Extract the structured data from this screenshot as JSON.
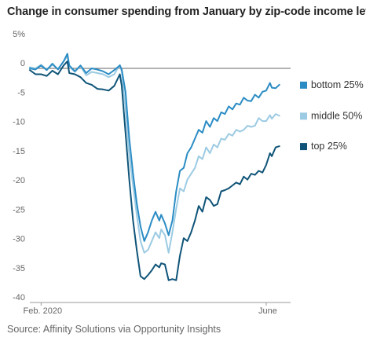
{
  "chart_data": {
    "type": "line",
    "title": "Change in consumer spending from January by zip-code income level",
    "source": "Source: Affinity Solutions via Opportunity Insights",
    "xlabel": "",
    "ylabel": "",
    "x_ticks": [
      {
        "label": "Feb. 2020",
        "x": 0
      },
      {
        "label": "June",
        "x": 120
      }
    ],
    "y_ticks": [
      "5%",
      "0",
      "-5",
      "-10",
      "-15",
      "-20",
      "-25",
      "-30",
      "-35",
      "-40"
    ],
    "y_tick_values": [
      5,
      0,
      -5,
      -10,
      -15,
      -20,
      -25,
      -30,
      -35,
      -40
    ],
    "xlim": [
      -6,
      133
    ],
    "ylim": [
      -40,
      5
    ],
    "grid": false,
    "legend_placement": "right",
    "series": [
      {
        "name": "bottom 25%",
        "color": "#2b8cc4",
        "points": [
          [
            -6,
            0
          ],
          [
            -3,
            -0.2
          ],
          [
            0,
            0.5
          ],
          [
            3,
            -0.3
          ],
          [
            6,
            0.8
          ],
          [
            9,
            -0.2
          ],
          [
            12,
            1.2
          ],
          [
            14,
            2.5
          ],
          [
            15,
            0.5
          ],
          [
            18,
            -0.5
          ],
          [
            21,
            0.5
          ],
          [
            24,
            -0.8
          ],
          [
            27,
            0
          ],
          [
            30,
            -0.2
          ],
          [
            33,
            -0.5
          ],
          [
            36,
            -1
          ],
          [
            39,
            -0.3
          ],
          [
            42,
            0.5
          ],
          [
            43,
            -0.2
          ],
          [
            45,
            -4
          ],
          [
            47,
            -12
          ],
          [
            49,
            -18
          ],
          [
            51,
            -23
          ],
          [
            53,
            -27
          ],
          [
            55,
            -29.5
          ],
          [
            57,
            -28
          ],
          [
            59,
            -26
          ],
          [
            61,
            -24.5
          ],
          [
            63,
            -26
          ],
          [
            64,
            -25
          ],
          [
            66,
            -26.5
          ],
          [
            68,
            -28.5
          ],
          [
            70,
            -26
          ],
          [
            72,
            -21
          ],
          [
            74,
            -17.5
          ],
          [
            76,
            -17
          ],
          [
            78,
            -14.5
          ],
          [
            80,
            -13.5
          ],
          [
            82,
            -12
          ],
          [
            84,
            -10.5
          ],
          [
            86,
            -11
          ],
          [
            88,
            -9
          ],
          [
            90,
            -10
          ],
          [
            92,
            -8.5
          ],
          [
            94,
            -9
          ],
          [
            96,
            -7.5
          ],
          [
            98,
            -7.8
          ],
          [
            100,
            -6.5
          ],
          [
            102,
            -7
          ],
          [
            104,
            -6
          ],
          [
            106,
            -6.2
          ],
          [
            108,
            -5
          ],
          [
            110,
            -5.5
          ],
          [
            112,
            -5.6
          ],
          [
            114,
            -4.5
          ],
          [
            116,
            -5
          ],
          [
            118,
            -4
          ],
          [
            120,
            -3.8
          ],
          [
            122,
            -2.5
          ],
          [
            123,
            -3.3
          ],
          [
            125,
            -3.4
          ],
          [
            127,
            -2.8
          ]
        ]
      },
      {
        "name": "middle 50%",
        "color": "#9ccbe3",
        "points": [
          [
            -6,
            0.2
          ],
          [
            -3,
            0
          ],
          [
            0,
            0.6
          ],
          [
            3,
            -0.2
          ],
          [
            6,
            0.6
          ],
          [
            9,
            -0.1
          ],
          [
            12,
            1.2
          ],
          [
            14,
            2.1
          ],
          [
            15,
            0.3
          ],
          [
            18,
            -0.6
          ],
          [
            21,
            0.4
          ],
          [
            24,
            -1.2
          ],
          [
            27,
            -0.6
          ],
          [
            30,
            -0.8
          ],
          [
            33,
            -1
          ],
          [
            36,
            -1.5
          ],
          [
            39,
            -1
          ],
          [
            42,
            0.6
          ],
          [
            43,
            -0.6
          ],
          [
            45,
            -7
          ],
          [
            47,
            -15
          ],
          [
            49,
            -20
          ],
          [
            51,
            -25
          ],
          [
            53,
            -29.5
          ],
          [
            55,
            -31.5
          ],
          [
            57,
            -31
          ],
          [
            59,
            -29.5
          ],
          [
            61,
            -28
          ],
          [
            63,
            -29
          ],
          [
            64,
            -27.5
          ],
          [
            66,
            -28.5
          ],
          [
            68,
            -31.5
          ],
          [
            70,
            -28
          ],
          [
            72,
            -24
          ],
          [
            74,
            -20.5
          ],
          [
            76,
            -21
          ],
          [
            78,
            -19
          ],
          [
            80,
            -18
          ],
          [
            82,
            -17
          ],
          [
            84,
            -15
          ],
          [
            86,
            -15.5
          ],
          [
            88,
            -13.5
          ],
          [
            90,
            -14.5
          ],
          [
            92,
            -13
          ],
          [
            94,
            -13.5
          ],
          [
            96,
            -12
          ],
          [
            98,
            -12.2
          ],
          [
            100,
            -11.2
          ],
          [
            102,
            -11.5
          ],
          [
            104,
            -10.5
          ],
          [
            106,
            -10.8
          ],
          [
            108,
            -10.5
          ],
          [
            110,
            -9.8
          ],
          [
            112,
            -10
          ],
          [
            114,
            -9.8
          ],
          [
            116,
            -8.5
          ],
          [
            118,
            -9
          ],
          [
            120,
            -9
          ],
          [
            122,
            -8
          ],
          [
            123,
            -8.6
          ],
          [
            125,
            -7.8
          ],
          [
            127,
            -8.1
          ]
        ]
      },
      {
        "name": "top 25%",
        "color": "#0f5478",
        "points": [
          [
            -6,
            -0.3
          ],
          [
            -3,
            -1
          ],
          [
            0,
            -1
          ],
          [
            3,
            -1.3
          ],
          [
            6,
            -0.4
          ],
          [
            9,
            -1
          ],
          [
            12,
            0.5
          ],
          [
            14,
            1.2
          ],
          [
            15,
            -0.8
          ],
          [
            18,
            -1
          ],
          [
            21,
            -1.5
          ],
          [
            24,
            -2.5
          ],
          [
            27,
            -2.8
          ],
          [
            30,
            -3.5
          ],
          [
            33,
            -3.6
          ],
          [
            36,
            -3.8
          ],
          [
            39,
            -3
          ],
          [
            42,
            -1
          ],
          [
            43,
            -3
          ],
          [
            45,
            -11
          ],
          [
            47,
            -19
          ],
          [
            49,
            -26
          ],
          [
            51,
            -31
          ],
          [
            53,
            -35.5
          ],
          [
            55,
            -36
          ],
          [
            57,
            -35.3
          ],
          [
            59,
            -34.5
          ],
          [
            61,
            -33.5
          ],
          [
            63,
            -34
          ],
          [
            64,
            -33.3
          ],
          [
            66,
            -33.5
          ],
          [
            68,
            -36.2
          ],
          [
            70,
            -36
          ],
          [
            72,
            -36.2
          ],
          [
            74,
            -32
          ],
          [
            76,
            -29
          ],
          [
            78,
            -29.5
          ],
          [
            80,
            -28
          ],
          [
            82,
            -26
          ],
          [
            84,
            -23.5
          ],
          [
            86,
            -24.5
          ],
          [
            88,
            -22
          ],
          [
            90,
            -22.5
          ],
          [
            92,
            -23.5
          ],
          [
            94,
            -23.2
          ],
          [
            96,
            -21
          ],
          [
            98,
            -20.8
          ],
          [
            100,
            -20.5
          ],
          [
            102,
            -20
          ],
          [
            104,
            -19.5
          ],
          [
            106,
            -19.8
          ],
          [
            108,
            -18.5
          ],
          [
            110,
            -19
          ],
          [
            112,
            -18
          ],
          [
            114,
            -18.2
          ],
          [
            116,
            -17.5
          ],
          [
            118,
            -17.8
          ],
          [
            120,
            -16.5
          ],
          [
            122,
            -14.5
          ],
          [
            123,
            -15
          ],
          [
            125,
            -13.5
          ],
          [
            127,
            -13.3
          ]
        ]
      }
    ]
  }
}
